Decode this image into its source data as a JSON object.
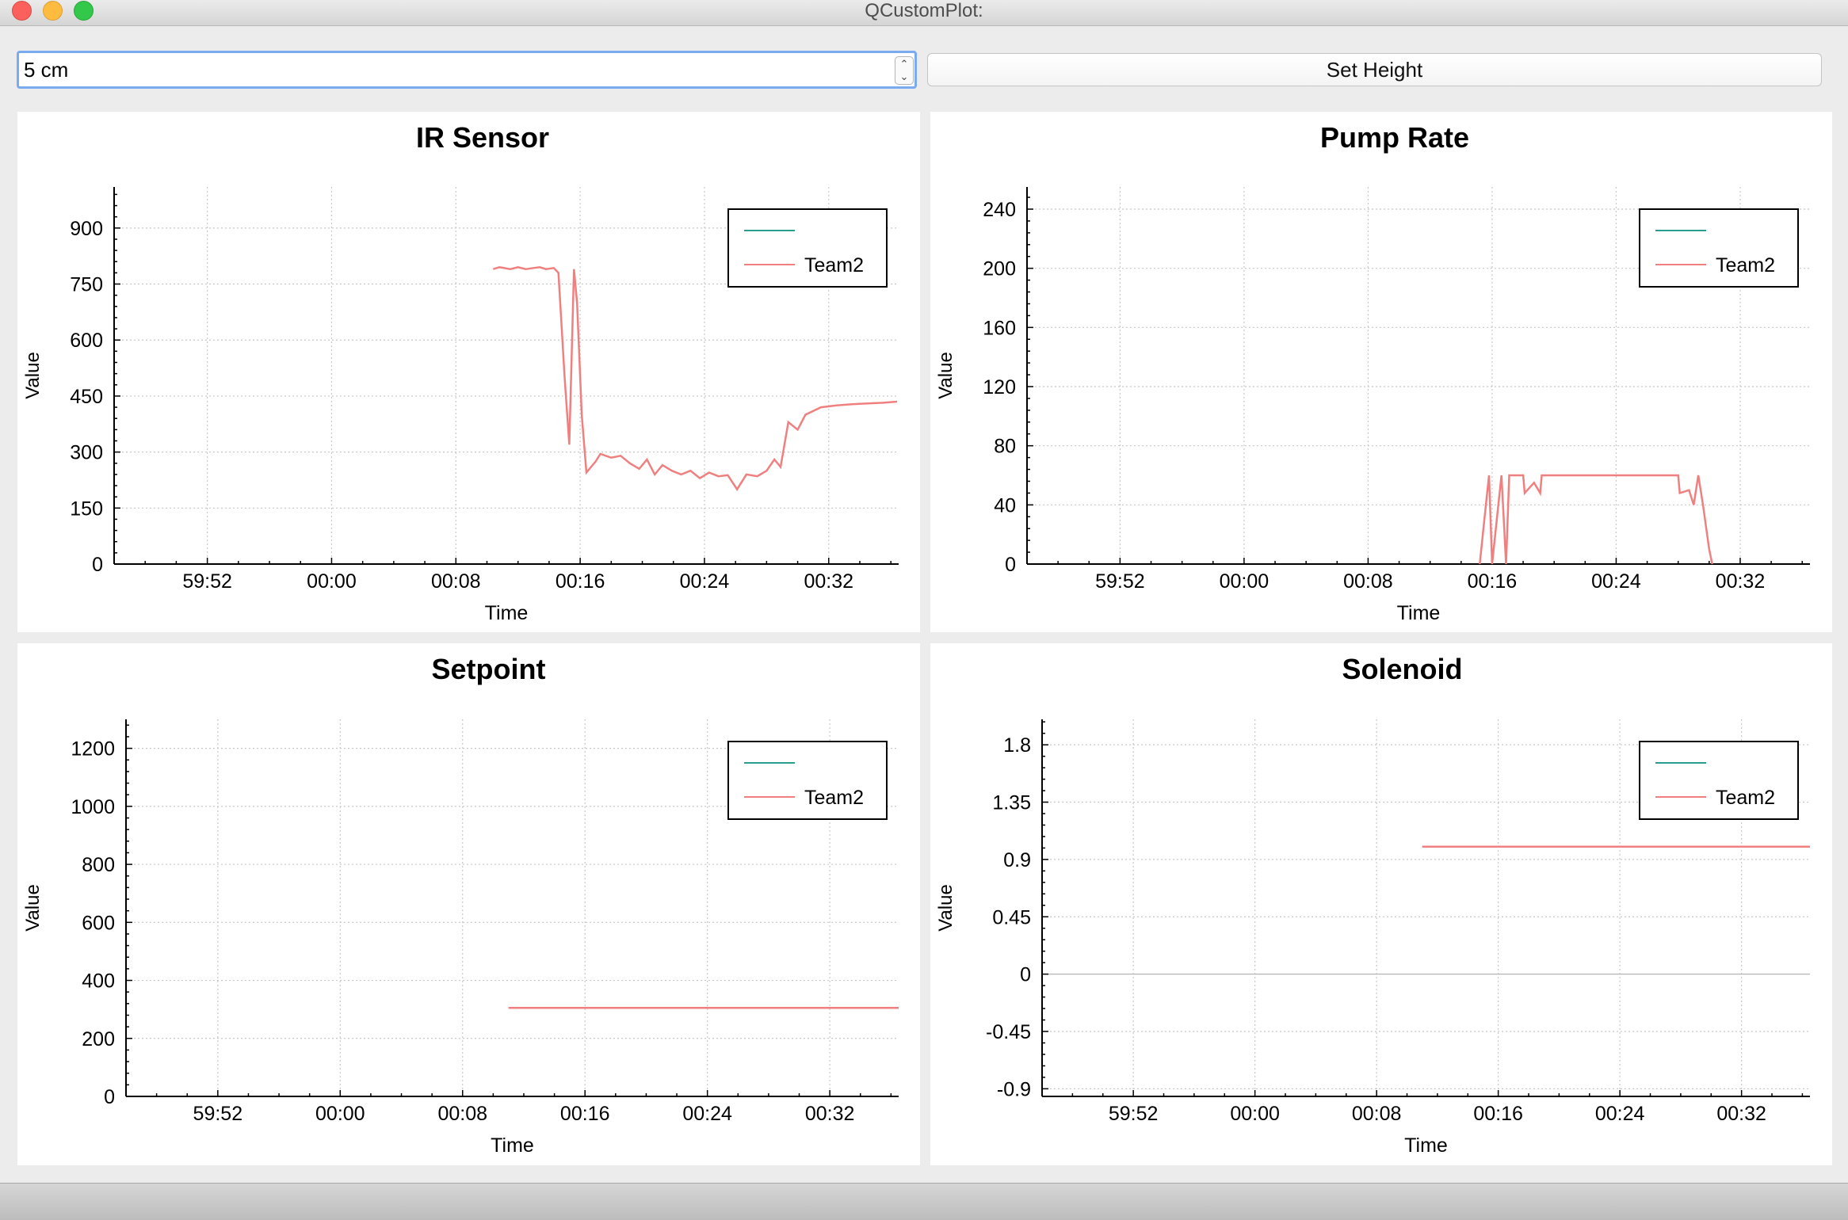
{
  "window": {
    "title": "QCustomPlot:"
  },
  "controls": {
    "height_input_value": "5 cm",
    "spin_up_icon": "chevron-up-icon",
    "spin_down_icon": "chevron-down-icon",
    "set_height_label": "Set Height"
  },
  "colors": {
    "series_teal": "#2a9d8f",
    "series_red": "#f08080",
    "grid": "#c8c8c8"
  },
  "chart_data": [
    {
      "type": "line",
      "title": "IR Sensor",
      "xlabel": "Time",
      "ylabel": "Value",
      "x_ticks": [
        "59:52",
        "00:00",
        "00:08",
        "00:16",
        "00:24",
        "00:32"
      ],
      "xlim": [
        -14,
        36.5
      ],
      "ylim": [
        0,
        1010
      ],
      "y_ticks": [
        0,
        150,
        300,
        450,
        600,
        750,
        900
      ],
      "y_tick_labels": [
        "0",
        "150",
        "300",
        "450",
        "600",
        "750",
        "900"
      ],
      "grid": true,
      "legend": {
        "position": "top-right",
        "entries": [
          {
            "name": "",
            "color": "#2a9d8f"
          },
          {
            "name": "Team2",
            "color": "#f08080"
          }
        ]
      },
      "series": [
        {
          "name": "Team2",
          "color": "#f08080",
          "x": [
            10.4,
            10.8,
            11.5,
            12,
            12.5,
            13,
            13.4,
            13.8,
            14.3,
            14.6,
            15,
            15.3,
            15.6,
            15.8,
            16.1,
            16.4,
            17,
            17.3,
            18,
            18.6,
            19.2,
            19.8,
            20.3,
            20.8,
            21.3,
            21.9,
            22.5,
            23.1,
            23.7,
            24.3,
            24.9,
            25.5,
            26.1,
            26.7,
            27.4,
            28,
            28.5,
            28.9,
            29.4,
            30,
            30.5,
            31.5,
            32.5,
            33.5,
            34.5,
            35.5,
            36.4
          ],
          "y": [
            790,
            795,
            790,
            795,
            790,
            793,
            795,
            790,
            793,
            780,
            500,
            320,
            790,
            700,
            400,
            245,
            275,
            295,
            285,
            290,
            270,
            255,
            280,
            240,
            265,
            250,
            240,
            250,
            230,
            245,
            235,
            238,
            200,
            240,
            235,
            250,
            280,
            260,
            380,
            360,
            400,
            420,
            425,
            428,
            430,
            432,
            435
          ]
        }
      ]
    },
    {
      "type": "line",
      "title": "Pump Rate",
      "xlabel": "Time",
      "ylabel": "Value",
      "x_ticks": [
        "59:52",
        "00:00",
        "00:08",
        "00:16",
        "00:24",
        "00:32"
      ],
      "xlim": [
        -14,
        36.5
      ],
      "ylim": [
        0,
        255
      ],
      "y_ticks": [
        0,
        40,
        80,
        120,
        160,
        200,
        240
      ],
      "y_tick_labels": [
        "0",
        "40",
        "80",
        "120",
        "160",
        "200",
        "240"
      ],
      "grid": true,
      "legend": {
        "position": "top-right",
        "entries": [
          {
            "name": "",
            "color": "#2a9d8f"
          },
          {
            "name": "Team2",
            "color": "#f08080"
          }
        ]
      },
      "series": [
        {
          "name": "Team2",
          "color": "#f08080",
          "x": [
            15.2,
            15.5,
            15.8,
            16.0,
            16.3,
            16.6,
            16.9,
            17.1,
            17.2,
            18.0,
            18.1,
            18.7,
            19.1,
            19.2,
            20,
            22,
            24,
            26,
            27,
            28,
            28.1,
            28.7,
            29,
            29.3,
            29.6,
            30,
            30.2
          ],
          "y": [
            0,
            30,
            60,
            0,
            30,
            60,
            0,
            60,
            60,
            60,
            48,
            55,
            48,
            60,
            60,
            60,
            60,
            60,
            60,
            60,
            48,
            50,
            40,
            60,
            40,
            10,
            0
          ]
        }
      ]
    },
    {
      "type": "line",
      "title": "Setpoint",
      "xlabel": "Time",
      "ylabel": "Value",
      "x_ticks": [
        "59:52",
        "00:00",
        "00:08",
        "00:16",
        "00:24",
        "00:32"
      ],
      "xlim": [
        -14,
        36.5
      ],
      "ylim": [
        0,
        1300
      ],
      "y_ticks": [
        0,
        200,
        400,
        600,
        800,
        1000,
        1200
      ],
      "y_tick_labels": [
        "0",
        "200",
        "400",
        "600",
        "800",
        "1000",
        "1200"
      ],
      "grid": true,
      "legend": {
        "position": "top-right",
        "entries": [
          {
            "name": "",
            "color": "#2a9d8f"
          },
          {
            "name": "Team2",
            "color": "#f08080"
          }
        ]
      },
      "series": [
        {
          "name": "Team2",
          "color": "#f08080",
          "x": [
            11,
            36.5
          ],
          "y": [
            305,
            305
          ]
        }
      ]
    },
    {
      "type": "line",
      "title": "Solenoid",
      "xlabel": "Time",
      "ylabel": "Value",
      "x_ticks": [
        "59:52",
        "00:00",
        "00:08",
        "00:16",
        "00:24",
        "00:32"
      ],
      "xlim": [
        -14,
        36.5
      ],
      "ylim": [
        -0.96,
        2.0
      ],
      "y_ticks": [
        -0.9,
        -0.45,
        0,
        0.45,
        0.9,
        1.35,
        1.8
      ],
      "y_tick_labels": [
        "-0.9",
        "-0.45",
        "0",
        "0.45",
        "0.9",
        "1.35",
        "1.8"
      ],
      "grid": true,
      "legend": {
        "position": "top-right",
        "entries": [
          {
            "name": "",
            "color": "#2a9d8f"
          },
          {
            "name": "Team2",
            "color": "#f08080"
          }
        ]
      },
      "series": [
        {
          "name": "Team2",
          "color": "#f08080",
          "x": [
            11,
            36.5
          ],
          "y": [
            1,
            1
          ]
        }
      ]
    }
  ]
}
